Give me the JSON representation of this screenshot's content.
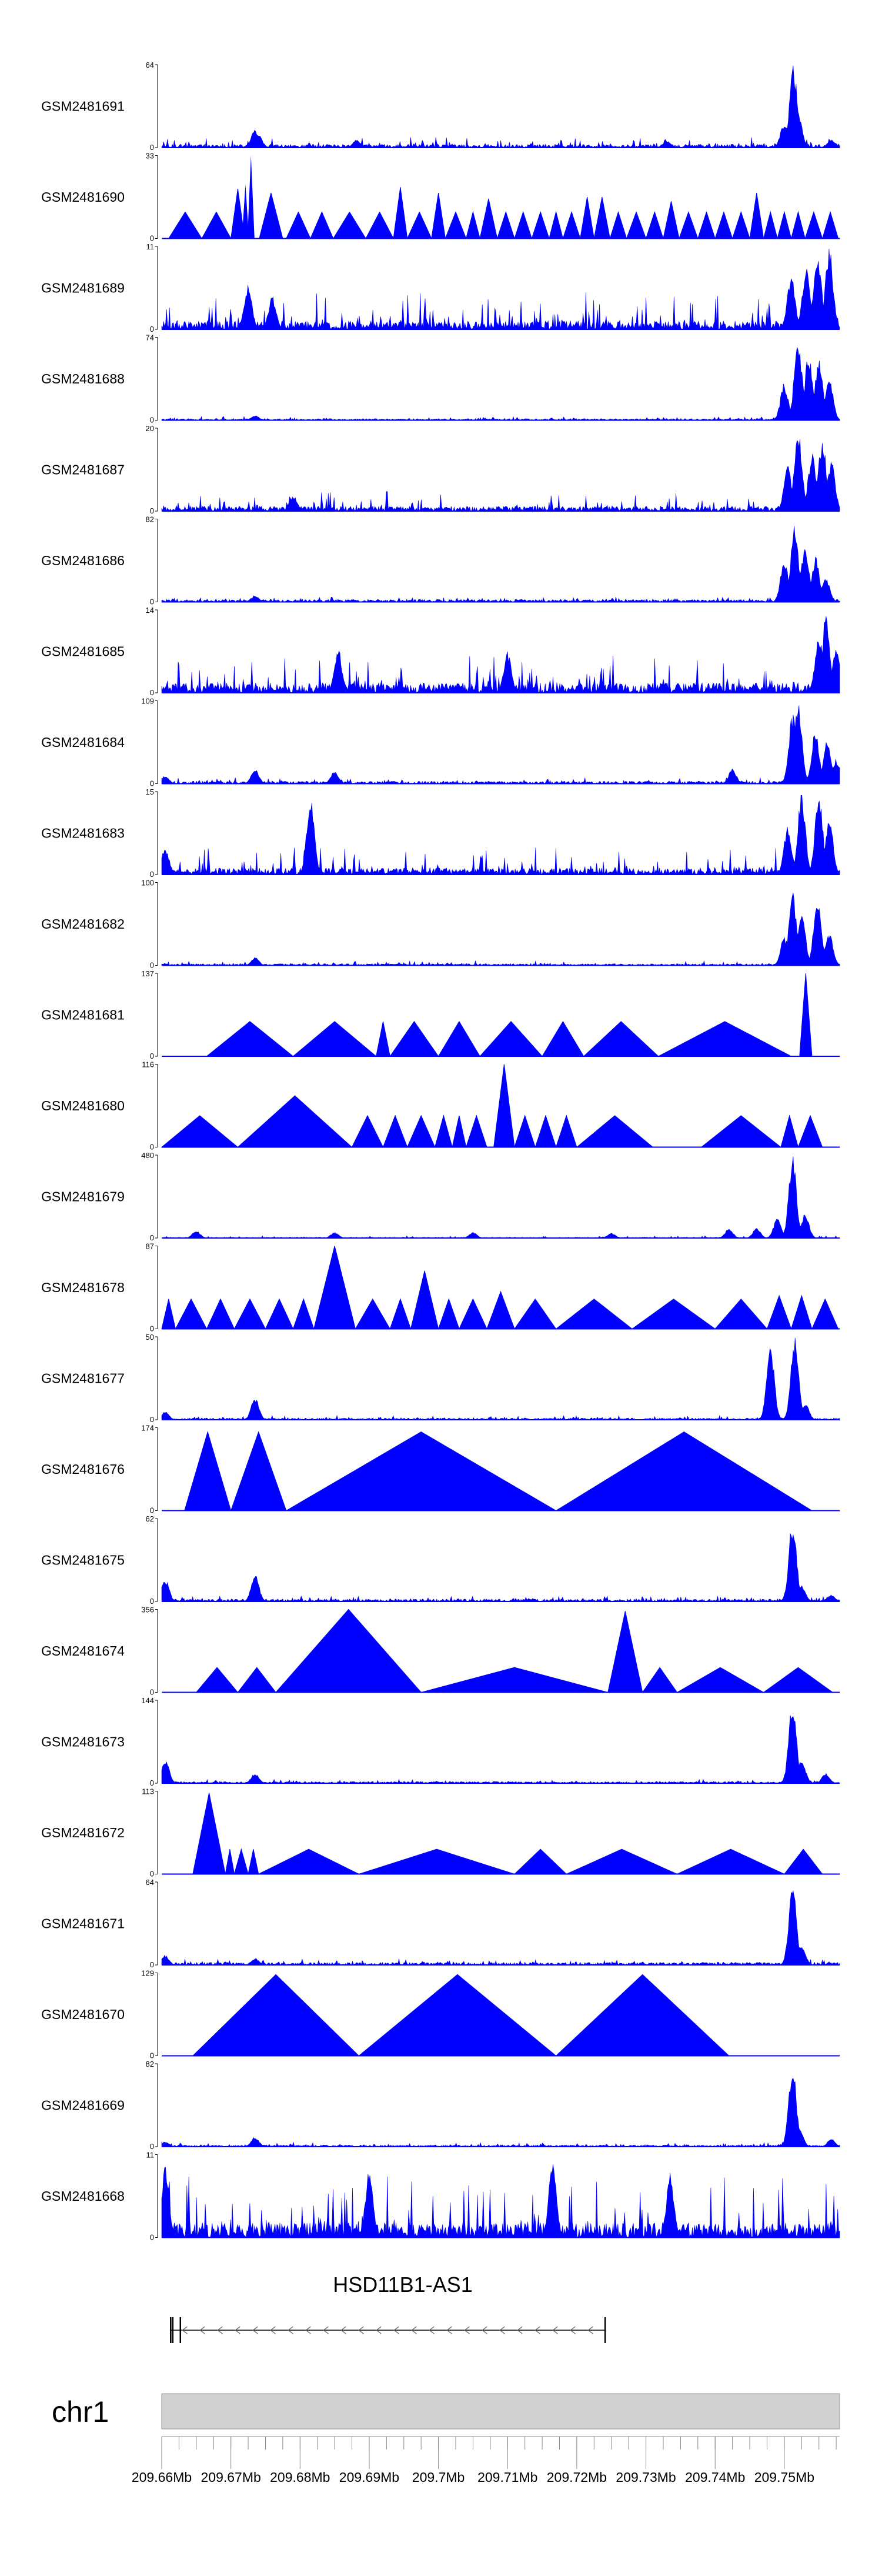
{
  "chart_data": {
    "type": "area",
    "chromosome": "chr1",
    "xlim": [
      209.66,
      209.758
    ],
    "x_ticks": [
      209.66,
      209.67,
      209.68,
      209.69,
      209.7,
      209.71,
      209.72,
      209.73,
      209.74,
      209.75
    ],
    "x_tick_labels": [
      "209.66Mb",
      "209.67Mb",
      "209.68Mb",
      "209.69Mb",
      "209.7Mb",
      "209.71Mb",
      "209.72Mb",
      "209.73Mb",
      "209.74Mb",
      "209.75Mb"
    ],
    "gene": {
      "name": "HSD11B1-AS1",
      "strand": "-",
      "start": 209.6613,
      "end": 209.7242,
      "exons": [
        [
          209.6613,
          209.6614
        ],
        [
          209.6616,
          209.6617
        ],
        [
          209.6627,
          209.6628
        ],
        [
          209.7241,
          209.7242
        ]
      ]
    },
    "tracks": [
      {
        "name": "GSM2481691",
        "ymax": 64,
        "style": "dense",
        "baseline": 0.04,
        "noise": 0.1,
        "peaks": [
          [
            209.6735,
            0.22
          ],
          [
            209.674,
            0.15
          ],
          [
            209.6882,
            0.1
          ],
          [
            209.733,
            0.08
          ],
          [
            209.75,
            0.3
          ],
          [
            209.7513,
            1.0
          ],
          [
            209.752,
            0.45
          ],
          [
            209.7568,
            0.1
          ]
        ]
      },
      {
        "name": "GSM2481690",
        "ymax": 33,
        "style": "triangles",
        "h": 0.32,
        "peaks": [
          [
            209.6705,
            0.6
          ],
          [
            209.6721,
            0.65
          ],
          [
            209.6729,
            1.0
          ],
          [
            209.6741,
            0.55
          ],
          [
            209.694,
            0.62
          ],
          [
            209.6997,
            0.55
          ],
          [
            209.7064,
            0.48
          ],
          [
            209.7225,
            0.5
          ],
          [
            209.734,
            0.45
          ],
          [
            209.7462,
            0.55
          ]
        ]
      },
      {
        "name": "GSM2481689",
        "ymax": 11,
        "style": "dense",
        "baseline": 0.1,
        "noise": 0.38,
        "peaks": [
          [
            209.6725,
            0.55
          ],
          [
            209.676,
            0.4
          ],
          [
            209.7548,
            0.95
          ],
          [
            209.7565,
            1.0
          ],
          [
            209.7532,
            0.8
          ],
          [
            209.751,
            0.7
          ]
        ]
      },
      {
        "name": "GSM2481688",
        "ymax": 74,
        "style": "dense",
        "baseline": 0.02,
        "noise": 0.03,
        "peaks": [
          [
            209.6735,
            0.06
          ],
          [
            209.752,
            1.0
          ],
          [
            209.7535,
            0.8
          ],
          [
            209.755,
            0.75
          ],
          [
            209.75,
            0.45
          ],
          [
            209.7565,
            0.5
          ]
        ]
      },
      {
        "name": "GSM2481687",
        "ymax": 20,
        "style": "dense",
        "baseline": 0.06,
        "noise": 0.18,
        "peaks": [
          [
            209.679,
            0.2
          ],
          [
            209.752,
            0.98
          ],
          [
            209.754,
            0.7
          ],
          [
            209.7555,
            0.9
          ],
          [
            209.7505,
            0.55
          ],
          [
            209.7568,
            0.6
          ]
        ]
      },
      {
        "name": "GSM2481686",
        "ymax": 82,
        "style": "dense",
        "baseline": 0.03,
        "noise": 0.04,
        "peaks": [
          [
            209.6735,
            0.08
          ],
          [
            209.7515,
            0.95
          ],
          [
            209.753,
            0.7
          ],
          [
            209.7545,
            0.55
          ],
          [
            209.75,
            0.5
          ],
          [
            209.756,
            0.3
          ]
        ]
      },
      {
        "name": "GSM2481685",
        "ymax": 14,
        "style": "dense",
        "baseline": 0.12,
        "noise": 0.4,
        "peaks": [
          [
            209.6855,
            0.55
          ],
          [
            209.71,
            0.5
          ],
          [
            209.755,
            0.7
          ],
          [
            209.756,
            0.95
          ],
          [
            209.7575,
            0.55
          ]
        ]
      },
      {
        "name": "GSM2481684",
        "ymax": 109,
        "style": "dense",
        "baseline": 0.03,
        "noise": 0.05,
        "peaks": [
          [
            209.6605,
            0.1
          ],
          [
            209.6735,
            0.18
          ],
          [
            209.685,
            0.16
          ],
          [
            209.7425,
            0.18
          ],
          [
            209.7512,
            0.85
          ],
          [
            209.752,
            1.0
          ],
          [
            209.7545,
            0.65
          ],
          [
            209.7562,
            0.55
          ],
          [
            209.7575,
            0.3
          ]
        ]
      },
      {
        "name": "GSM2481683",
        "ymax": 15,
        "style": "dense",
        "baseline": 0.08,
        "noise": 0.28,
        "peaks": [
          [
            209.6605,
            0.35
          ],
          [
            209.6815,
            0.95
          ],
          [
            209.7525,
            0.98
          ],
          [
            209.755,
            1.0
          ],
          [
            209.7565,
            0.7
          ],
          [
            209.7505,
            0.6
          ]
        ]
      },
      {
        "name": "GSM2481682",
        "ymax": 100,
        "style": "dense",
        "baseline": 0.02,
        "noise": 0.04,
        "peaks": [
          [
            209.6735,
            0.1
          ],
          [
            209.7512,
            0.9
          ],
          [
            209.7525,
            0.65
          ],
          [
            209.7548,
            0.85
          ],
          [
            209.7565,
            0.4
          ],
          [
            209.75,
            0.35
          ]
        ]
      },
      {
        "name": "GSM2481681",
        "ymax": 137,
        "style": "triangles",
        "h": 0.42,
        "peaks": [
          [
            209.7522,
            1.0
          ]
        ]
      },
      {
        "name": "GSM2481680",
        "ymax": 116,
        "style": "triangles",
        "h": 0.38,
        "peaks": [
          [
            209.6792,
            0.62
          ],
          [
            209.7095,
            1.0
          ]
        ]
      },
      {
        "name": "GSM2481679",
        "ymax": 480,
        "style": "dense",
        "baseline": 0.01,
        "noise": 0.02,
        "peaks": [
          [
            209.665,
            0.09
          ],
          [
            209.685,
            0.07
          ],
          [
            209.705,
            0.07
          ],
          [
            209.725,
            0.06
          ],
          [
            209.742,
            0.12
          ],
          [
            209.746,
            0.12
          ],
          [
            209.749,
            0.25
          ],
          [
            209.7512,
            1.0
          ],
          [
            209.753,
            0.3
          ]
        ]
      },
      {
        "name": "GSM2481678",
        "ymax": 87,
        "style": "triangles",
        "h": 0.36,
        "peaks": [
          [
            209.6855,
            1.0
          ],
          [
            209.697,
            0.7
          ],
          [
            209.709,
            0.45
          ],
          [
            209.751,
            0.4
          ]
        ]
      },
      {
        "name": "GSM2481677",
        "ymax": 50,
        "style": "dense",
        "baseline": 0.02,
        "noise": 0.04,
        "peaks": [
          [
            209.6735,
            0.28
          ],
          [
            209.6605,
            0.1
          ],
          [
            209.748,
            0.9
          ],
          [
            209.7515,
            1.0
          ],
          [
            209.753,
            0.2
          ]
        ]
      },
      {
        "name": "GSM2481676",
        "ymax": 174,
        "style": "triangles",
        "h": 0.95,
        "peaks": []
      },
      {
        "name": "GSM2481675",
        "ymax": 62,
        "style": "dense",
        "baseline": 0.03,
        "noise": 0.05,
        "peaks": [
          [
            209.6605,
            0.28
          ],
          [
            209.6735,
            0.35
          ],
          [
            209.7512,
            1.0
          ],
          [
            209.7525,
            0.2
          ],
          [
            209.7568,
            0.08
          ]
        ]
      },
      {
        "name": "GSM2481674",
        "ymax": 356,
        "style": "triangles",
        "h": 0.3,
        "peaks": [
          [
            209.6845,
            1.0
          ],
          [
            209.7265,
            0.98
          ]
        ]
      },
      {
        "name": "GSM2481673",
        "ymax": 144,
        "style": "dense",
        "baseline": 0.02,
        "noise": 0.03,
        "peaks": [
          [
            209.6605,
            0.3
          ],
          [
            209.6735,
            0.12
          ],
          [
            209.7512,
            1.0
          ],
          [
            209.7525,
            0.3
          ],
          [
            209.756,
            0.12
          ]
        ]
      },
      {
        "name": "GSM2481672",
        "ymax": 113,
        "style": "triangles",
        "h": 0.3,
        "peaks": [
          [
            209.6672,
            0.98
          ]
        ]
      },
      {
        "name": "GSM2481671",
        "ymax": 64,
        "style": "dense",
        "baseline": 0.03,
        "noise": 0.05,
        "peaks": [
          [
            209.6605,
            0.12
          ],
          [
            209.6735,
            0.08
          ],
          [
            209.7512,
            1.0
          ],
          [
            209.7525,
            0.25
          ]
        ]
      },
      {
        "name": "GSM2481670",
        "ymax": 129,
        "style": "triangles",
        "h": 0.98,
        "peaks": []
      },
      {
        "name": "GSM2481669",
        "ymax": 82,
        "style": "dense",
        "baseline": 0.02,
        "noise": 0.04,
        "peaks": [
          [
            209.6735,
            0.12
          ],
          [
            209.6605,
            0.06
          ],
          [
            209.7512,
            1.0
          ],
          [
            209.7522,
            0.2
          ],
          [
            209.7568,
            0.1
          ]
        ]
      },
      {
        "name": "GSM2481668",
        "ymax": 11,
        "style": "dense",
        "baseline": 0.18,
        "noise": 0.6,
        "peaks": [
          [
            209.6605,
            0.9
          ],
          [
            209.69,
            0.85
          ],
          [
            209.7165,
            0.95
          ],
          [
            209.7335,
            0.8
          ]
        ]
      }
    ],
    "triangle_segments": {
      "GSM2481690": [
        [
          209.661,
          209.6658
        ],
        [
          209.6658,
          209.67
        ],
        [
          209.67,
          209.672
        ],
        [
          209.6741,
          209.6775
        ],
        [
          209.678,
          209.6815
        ],
        [
          209.6815,
          209.6848
        ],
        [
          209.6848,
          209.6895
        ],
        [
          209.6895,
          209.6935
        ],
        [
          209.6935,
          209.6955
        ],
        [
          209.6955,
          209.699
        ],
        [
          209.699,
          209.701
        ],
        [
          209.701,
          209.704
        ],
        [
          209.704,
          209.706
        ],
        [
          209.706,
          209.7085
        ],
        [
          209.7085,
          209.711
        ],
        [
          209.711,
          209.7135
        ],
        [
          209.7135,
          209.716
        ],
        [
          209.716,
          209.718
        ],
        [
          209.718,
          209.7205
        ],
        [
          209.7205,
          209.7225
        ],
        [
          209.7225,
          209.7248
        ],
        [
          209.7248,
          209.7272
        ],
        [
          209.7272,
          209.73
        ],
        [
          209.73,
          209.7325
        ],
        [
          209.7325,
          209.7348
        ],
        [
          209.7348,
          209.7375
        ],
        [
          209.7375,
          209.74
        ],
        [
          209.74,
          209.7425
        ],
        [
          209.7425,
          209.745
        ],
        [
          209.745,
          209.747
        ],
        [
          209.747,
          209.749
        ],
        [
          209.749,
          209.751
        ],
        [
          209.751,
          209.753
        ],
        [
          209.753,
          209.7555
        ],
        [
          209.7555,
          209.7578
        ]
      ],
      "GSM2481681": [
        [
          209.6665,
          209.679
        ],
        [
          209.679,
          209.691
        ],
        [
          209.691,
          209.693
        ],
        [
          209.693,
          209.7
        ],
        [
          209.7,
          209.706
        ],
        [
          209.706,
          209.715
        ],
        [
          209.715,
          209.721
        ],
        [
          209.721,
          209.7318
        ],
        [
          209.7318,
          209.751
        ],
        [
          209.7522,
          209.754
        ]
      ],
      "GSM2481680": [
        [
          209.66,
          209.671
        ],
        [
          209.671,
          209.6875
        ],
        [
          209.6875,
          209.692
        ],
        [
          209.692,
          209.6955
        ],
        [
          209.6955,
          209.6995
        ],
        [
          209.6995,
          209.702
        ],
        [
          209.702,
          209.704
        ],
        [
          209.704,
          209.707
        ],
        [
          209.708,
          209.711
        ],
        [
          209.711,
          209.714
        ],
        [
          209.714,
          209.717
        ],
        [
          209.717,
          209.72
        ],
        [
          209.72,
          209.731
        ],
        [
          209.738,
          209.7495
        ],
        [
          209.7495,
          209.752
        ],
        [
          209.752,
          209.7555
        ]
      ],
      "GSM2481679": [],
      "GSM2481678": [
        [
          209.66,
          209.662
        ],
        [
          209.662,
          209.6665
        ],
        [
          209.6665,
          209.6705
        ],
        [
          209.6705,
          209.675
        ],
        [
          209.675,
          209.679
        ],
        [
          209.679,
          209.682
        ],
        [
          209.682,
          209.688
        ],
        [
          209.688,
          209.693
        ],
        [
          209.693,
          209.696
        ],
        [
          209.696,
          209.7
        ],
        [
          209.7,
          209.703
        ],
        [
          209.703,
          209.707
        ],
        [
          209.707,
          209.711
        ],
        [
          209.711,
          209.717
        ],
        [
          209.717,
          209.728
        ],
        [
          209.728,
          209.74
        ],
        [
          209.74,
          209.7475
        ],
        [
          209.7475,
          209.751
        ],
        [
          209.751,
          209.754
        ],
        [
          209.754,
          209.7578
        ]
      ],
      "GSM2481676": [
        [
          209.6633,
          209.67
        ],
        [
          209.67,
          209.678
        ],
        [
          209.678,
          209.717
        ],
        [
          209.717,
          209.754
        ]
      ],
      "GSM2481674": [
        [
          209.665,
          209.671
        ],
        [
          209.671,
          209.6765
        ],
        [
          209.6765,
          209.6975
        ],
        [
          209.6975,
          209.7245
        ],
        [
          209.7245,
          209.7295
        ],
        [
          209.7295,
          209.7345
        ],
        [
          209.7345,
          209.747
        ],
        [
          209.747,
          209.757
        ]
      ],
      "GSM2481672": [
        [
          209.6645,
          209.6692
        ],
        [
          209.6692,
          209.6705
        ],
        [
          209.6705,
          209.6725
        ],
        [
          209.6725,
          209.674
        ],
        [
          209.674,
          209.6885
        ],
        [
          209.6885,
          209.711
        ],
        [
          209.711,
          209.7185
        ],
        [
          209.7185,
          209.7345
        ],
        [
          209.7345,
          209.75
        ],
        [
          209.75,
          209.7555
        ]
      ],
      "GSM2481670": [
        [
          209.6645,
          209.6885
        ],
        [
          209.6885,
          209.717
        ],
        [
          209.717,
          209.742
        ]
      ]
    }
  }
}
